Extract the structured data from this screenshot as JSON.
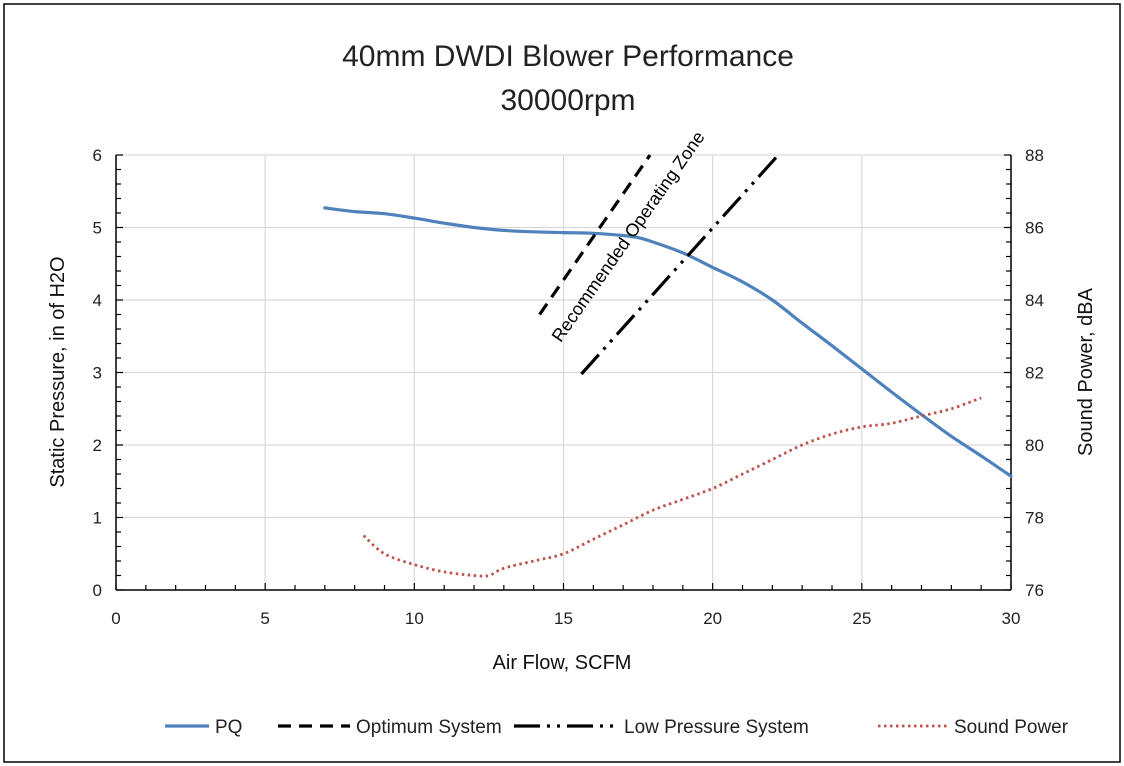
{
  "chart_data": {
    "type": "line",
    "title": "40mm DWDI Blower Performance",
    "subtitle": "30000rpm",
    "xlabel": "Air Flow, SCFM",
    "ylabel": "Static Pressure, in of H2O",
    "y2label": "Sound Power, dBA",
    "xlim": [
      0,
      30
    ],
    "ylim": [
      0,
      6
    ],
    "y2lim": [
      76,
      88
    ],
    "x_ticks": [
      "0",
      "5",
      "10",
      "15",
      "20",
      "25",
      "30"
    ],
    "y_ticks": [
      "0",
      "1",
      "2",
      "3",
      "4",
      "5",
      "6"
    ],
    "y2_ticks": [
      "76",
      "78",
      "80",
      "82",
      "84",
      "86",
      "88"
    ],
    "grid": true,
    "legend_position": "bottom",
    "annotation": "Recommended Operating Zone",
    "series": [
      {
        "name": "PQ",
        "axis": "left",
        "color": "#4f81bd",
        "style": "solid",
        "x": [
          7,
          8,
          9,
          10,
          11,
          12,
          13,
          14,
          15,
          16,
          17,
          17.5,
          18,
          19,
          20,
          21,
          22,
          23,
          24,
          25,
          26,
          27,
          28,
          29,
          30
        ],
        "y": [
          5.27,
          5.22,
          5.19,
          5.13,
          5.06,
          5.0,
          4.96,
          4.94,
          4.93,
          4.92,
          4.89,
          4.86,
          4.8,
          4.65,
          4.45,
          4.25,
          4.0,
          3.68,
          3.37,
          3.05,
          2.73,
          2.42,
          2.12,
          1.85,
          1.57
        ]
      },
      {
        "name": "Optimum System",
        "axis": "left",
        "color": "#000000",
        "style": "dashed",
        "x": [
          14.2,
          17.9
        ],
        "y": [
          3.8,
          6.0
        ]
      },
      {
        "name": "Low Pressure System",
        "axis": "left",
        "color": "#000000",
        "style": "dash-dot-dot",
        "x": [
          15.6,
          22.2
        ],
        "y": [
          2.98,
          6.0
        ]
      },
      {
        "name": "Sound Power",
        "axis": "right",
        "color": "#c0504d",
        "style": "dotted",
        "x": [
          8.3,
          9,
          10,
          11,
          12,
          12.5,
          13,
          14,
          15,
          16,
          17,
          18,
          19,
          20,
          21,
          22,
          23,
          24,
          25,
          26,
          27,
          28,
          29
        ],
        "y": [
          77.5,
          77.0,
          76.7,
          76.5,
          76.4,
          76.4,
          76.6,
          76.8,
          77.0,
          77.4,
          77.8,
          78.2,
          78.5,
          78.8,
          79.2,
          79.6,
          80.0,
          80.3,
          80.5,
          80.6,
          80.8,
          81.0,
          81.3
        ]
      }
    ]
  }
}
